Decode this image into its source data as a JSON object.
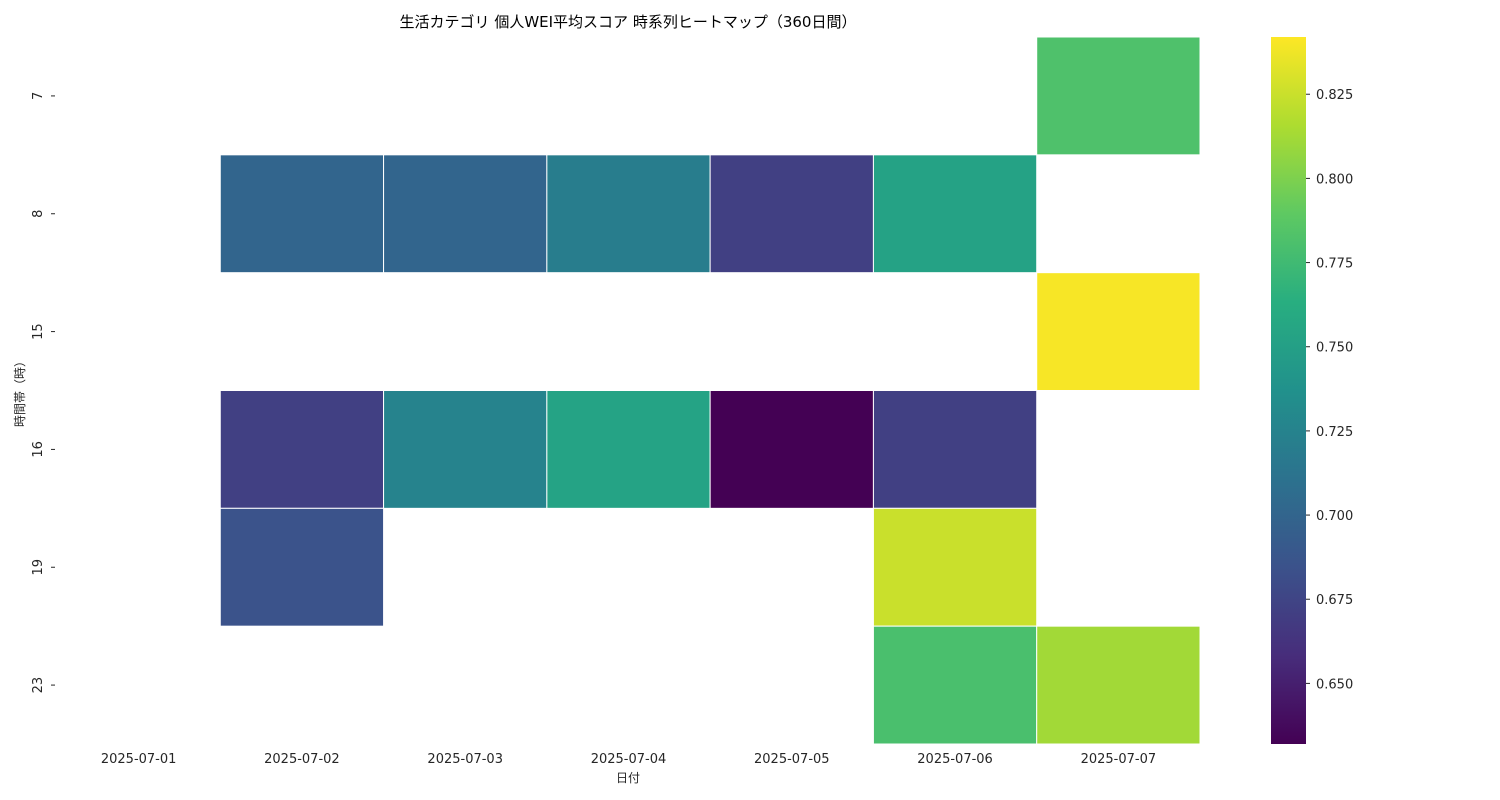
{
  "chart_data": {
    "type": "heatmap",
    "title": "生活カテゴリ 個人WEI平均スコア 時系列ヒートマップ（360日間）",
    "xlabel": "日付",
    "ylabel": "時間帯（時）",
    "x_categories": [
      "2025-07-01",
      "2025-07-02",
      "2025-07-03",
      "2025-07-04",
      "2025-07-05",
      "2025-07-06",
      "2025-07-07"
    ],
    "y_categories": [
      "7",
      "8",
      "15",
      "16",
      "19",
      "23"
    ],
    "values": [
      [
        null,
        null,
        null,
        null,
        null,
        null,
        0.782
      ],
      [
        null,
        0.7,
        0.7,
        0.72,
        0.672,
        0.752,
        null
      ],
      [
        null,
        null,
        null,
        null,
        null,
        null,
        0.84
      ],
      [
        null,
        0.672,
        0.725,
        0.753,
        0.632,
        0.672,
        null
      ],
      [
        null,
        0.685,
        null,
        null,
        null,
        0.825,
        null
      ],
      [
        null,
        null,
        null,
        null,
        null,
        0.78,
        0.812
      ]
    ],
    "colormap": "viridis",
    "colorbar": {
      "range": [
        0.632,
        0.842
      ],
      "ticks": [
        "0.650",
        "0.675",
        "0.700",
        "0.725",
        "0.750",
        "0.775",
        "0.800",
        "0.825"
      ]
    },
    "legend_placement": "right",
    "grid": false
  }
}
